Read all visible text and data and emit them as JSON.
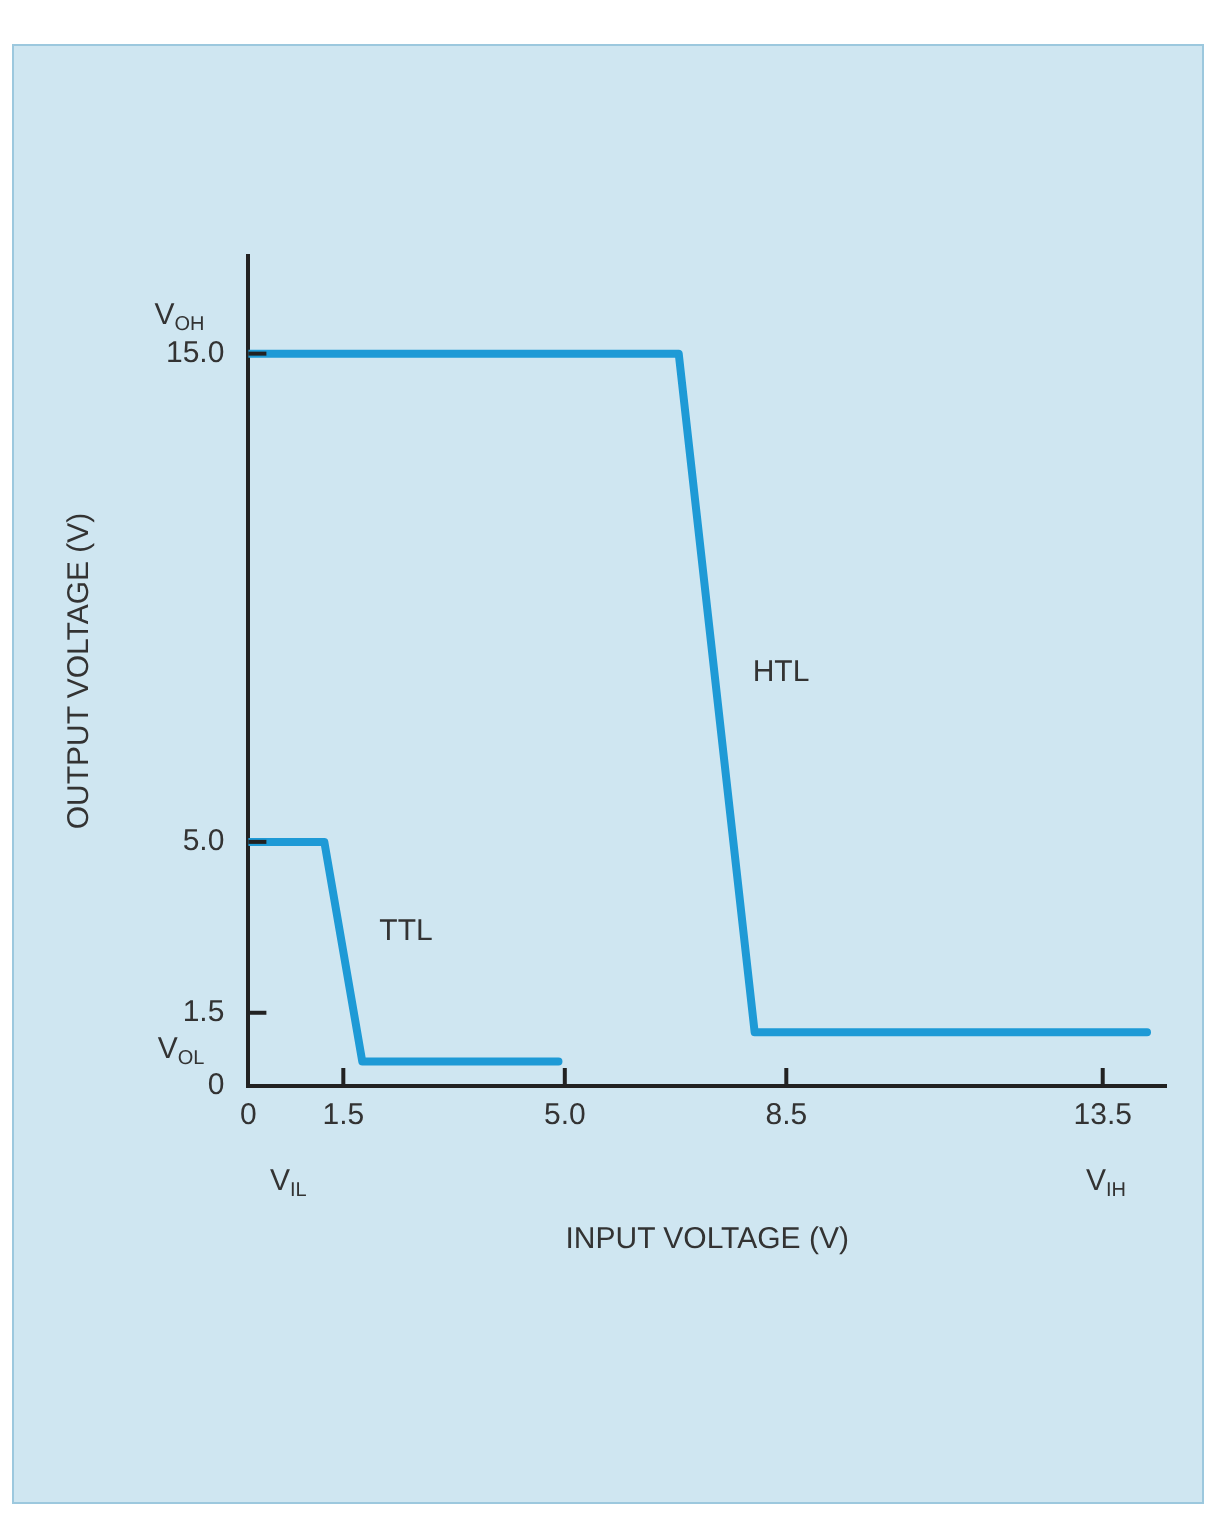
{
  "chart_data": {
    "type": "line",
    "xlabel": "INPUT VOLTAGE (V)",
    "ylabel": "OUTPUT VOLTAGE (V)",
    "xlim": [
      0,
      14.5
    ],
    "xticks": [
      0,
      1.5,
      {
        "value": 5,
        "label": "5.0"
      },
      8.5,
      13.5
    ],
    "ylim": [
      0,
      17
    ],
    "yticks": [
      0,
      1.5,
      {
        "value": 5,
        "label": "5.0"
      },
      {
        "value": 15,
        "label": "15.0"
      }
    ],
    "series": [
      {
        "name": "TTL",
        "color": "#1e9ad6",
        "x": [
          0,
          1.2,
          1.8,
          4.9
        ],
        "values": [
          5,
          5,
          0.5,
          0.5
        ]
      },
      {
        "name": "HTL",
        "color": "#1e9ad6",
        "x": [
          0,
          6.8,
          8.0,
          14.2
        ],
        "values": [
          15,
          15,
          1.1,
          1.1
        ]
      }
    ],
    "annotations": [
      "V$_{OH}$",
      "V$_{OL}$",
      "V$_{IL}$",
      "V$_{IH}$"
    ],
    "grid": false,
    "legend": false,
    "marker": "none",
    "line_style": "solid"
  }
}
